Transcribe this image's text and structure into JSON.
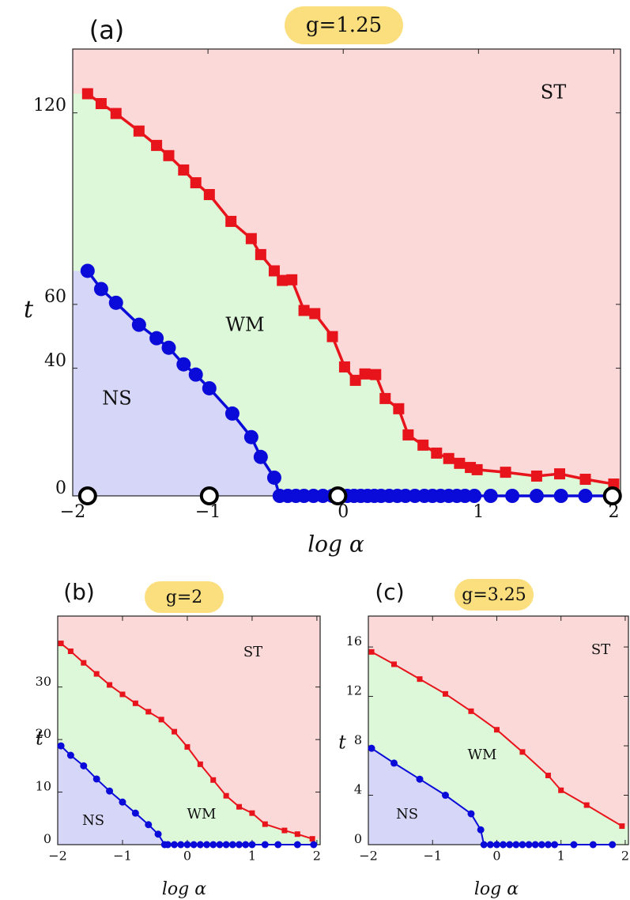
{
  "chart_data": [
    {
      "type": "line",
      "panel_label": "(a)",
      "subtitle": "g=1.25",
      "xlabel": "log α",
      "ylabel": "t",
      "annotations": [
        "ST",
        "WM",
        "NS"
      ],
      "region_colors": [
        "#fcd9d9",
        "#dcf8d9",
        "#d6d6f8"
      ],
      "xlim": [
        -2,
        2.05
      ],
      "ylim": [
        0,
        140
      ],
      "xticks": [
        {
          "value": -2,
          "label": "−2"
        },
        {
          "value": -1,
          "label": "−1"
        },
        0,
        1,
        2
      ],
      "yticks": [
        0,
        40,
        60,
        120
      ],
      "series": [
        {
          "color": "#e8141b",
          "marker": "square",
          "line": true,
          "x": [
            -1.89,
            -1.79,
            -1.68,
            -1.51,
            -1.38,
            -1.29,
            -1.18,
            -1.09,
            -0.99,
            -0.83,
            -0.68,
            -0.61,
            -0.51,
            -0.45,
            -0.38,
            -0.29,
            -0.21,
            -0.08,
            0.01,
            0.09,
            0.16,
            0.24,
            0.31,
            0.41,
            0.48,
            0.59,
            0.69,
            0.78,
            0.86,
            0.94,
            0.99,
            1.2,
            1.43,
            1.6,
            1.79,
            2.0
          ],
          "values": [
            126,
            122.9,
            119.8,
            114.3,
            109.8,
            106.6,
            102.1,
            98.1,
            94.4,
            86,
            80.6,
            75.6,
            70.5,
            67.5,
            67.7,
            58.1,
            57.1,
            49.9,
            40.4,
            36.2,
            38.2,
            38,
            30.5,
            27.3,
            19.1,
            15.9,
            13.4,
            11.7,
            10.2,
            8.9,
            8.2,
            7.4,
            6.2,
            6.9,
            5.2,
            3.7
          ]
        },
        {
          "color": "#0b0bd9",
          "marker": "circle",
          "line": true,
          "x": [
            -1.89,
            -1.79,
            -1.68,
            -1.51,
            -1.38,
            -1.29,
            -1.18,
            -1.09,
            -0.99,
            -0.82,
            -0.68,
            -0.61,
            -0.51,
            -0.47,
            -0.41,
            -0.35,
            -0.29,
            -0.22,
            -0.15,
            -0.08,
            0.03,
            0.08,
            0.13,
            0.18,
            0.23,
            0.28,
            0.34,
            0.4,
            0.46,
            0.53,
            0.6,
            0.66,
            0.72,
            0.78,
            0.84,
            0.9,
            0.97,
            1.09,
            1.25,
            1.43,
            1.61,
            1.79,
            1.99
          ],
          "values": [
            70.5,
            64.8,
            60.5,
            53.6,
            49.4,
            46.4,
            41.2,
            38,
            33.7,
            25.8,
            18.4,
            12.2,
            5.7,
            0,
            0,
            0,
            0,
            0,
            0,
            0,
            0,
            0,
            0,
            0,
            0,
            0,
            0,
            0,
            0,
            0,
            0,
            0,
            0,
            0,
            0,
            0,
            0,
            0,
            0,
            0,
            0,
            0,
            0
          ]
        },
        {
          "color": "#000000",
          "marker": "open-circle",
          "line": false,
          "x": [
            -1.89,
            -0.99,
            -0.04,
            1.99
          ],
          "values": [
            0,
            0,
            0,
            0
          ]
        }
      ]
    },
    {
      "type": "line",
      "panel_label": "(b)",
      "subtitle": "g=2",
      "xlabel": "log α",
      "ylabel": "t",
      "annotations": [
        "ST",
        "WM",
        "NS"
      ],
      "region_colors": [
        "#fcd9d9",
        "#dcf8d9",
        "#d6d6f8"
      ],
      "xlim": [
        -2,
        2.05
      ],
      "ylim": [
        0,
        43.5
      ],
      "xticks": [
        {
          "value": -2,
          "label": "−2"
        },
        {
          "value": -1,
          "label": "−1"
        },
        0,
        1,
        2
      ],
      "yticks": [
        0,
        10,
        20,
        30
      ],
      "series": [
        {
          "color": "#e8141b",
          "marker": "square",
          "line": true,
          "x": [
            -1.95,
            -1.8,
            -1.6,
            -1.4,
            -1.2,
            -1.0,
            -0.8,
            -0.6,
            -0.4,
            -0.2,
            0,
            0.2,
            0.4,
            0.6,
            0.8,
            1.0,
            1.2,
            1.5,
            1.7,
            1.93
          ],
          "values": [
            38.3,
            36.8,
            34.6,
            32.5,
            30.4,
            28.6,
            26.9,
            25.3,
            23.8,
            21.5,
            18.6,
            15.3,
            12.3,
            9.3,
            7.2,
            6.0,
            3.9,
            2.7,
            2.0,
            1.1
          ]
        },
        {
          "color": "#0b0bd9",
          "marker": "circle",
          "line": true,
          "x": [
            -1.95,
            -1.8,
            -1.6,
            -1.4,
            -1.2,
            -1.0,
            -0.8,
            -0.6,
            -0.45,
            -0.35,
            -0.3,
            -0.2,
            -0.1,
            0,
            0.1,
            0.2,
            0.3,
            0.4,
            0.5,
            0.6,
            0.7,
            0.8,
            0.9,
            1.0,
            1.2,
            1.4,
            1.7,
            1.95
          ],
          "values": [
            18.8,
            17,
            15,
            12.5,
            10.2,
            8.1,
            6,
            3.8,
            2,
            0,
            0,
            0,
            0,
            0,
            0,
            0,
            0,
            0,
            0,
            0,
            0,
            0,
            0,
            0,
            0,
            0,
            0,
            0
          ]
        }
      ]
    },
    {
      "type": "line",
      "panel_label": "(c)",
      "subtitle": "g=3.25",
      "xlabel": "log α",
      "ylabel": "t",
      "annotations": [
        "ST",
        "WM",
        "NS"
      ],
      "region_colors": [
        "#fcd9d9",
        "#dcf8d9",
        "#d6d6f8"
      ],
      "xlim": [
        -2,
        2.05
      ],
      "ylim": [
        0,
        18.5
      ],
      "xticks": [
        {
          "value": -2,
          "label": "−2"
        },
        {
          "value": -1,
          "label": "−1"
        },
        0,
        1,
        2
      ],
      "yticks": [
        0,
        4,
        8,
        12,
        16
      ],
      "series": [
        {
          "color": "#e8141b",
          "marker": "square",
          "line": true,
          "x": [
            -1.95,
            -1.6,
            -1.2,
            -0.8,
            -0.4,
            0,
            0.4,
            0.8,
            1.0,
            1.4,
            1.95
          ],
          "values": [
            15.6,
            14.6,
            13.4,
            12.2,
            10.8,
            9.3,
            7.5,
            5.6,
            4.4,
            3.2,
            1.5
          ]
        },
        {
          "color": "#0b0bd9",
          "marker": "circle",
          "line": true,
          "x": [
            -1.95,
            -1.6,
            -1.2,
            -0.8,
            -0.4,
            -0.25,
            -0.2,
            -0.1,
            0,
            0.1,
            0.2,
            0.3,
            0.4,
            0.5,
            0.6,
            0.7,
            0.8,
            0.9,
            1.2,
            1.5,
            1.8
          ],
          "values": [
            7.8,
            6.6,
            5.3,
            4.0,
            2.5,
            1.2,
            0,
            0,
            0,
            0,
            0,
            0,
            0,
            0,
            0,
            0,
            0,
            0,
            0,
            0,
            0
          ]
        }
      ]
    }
  ]
}
